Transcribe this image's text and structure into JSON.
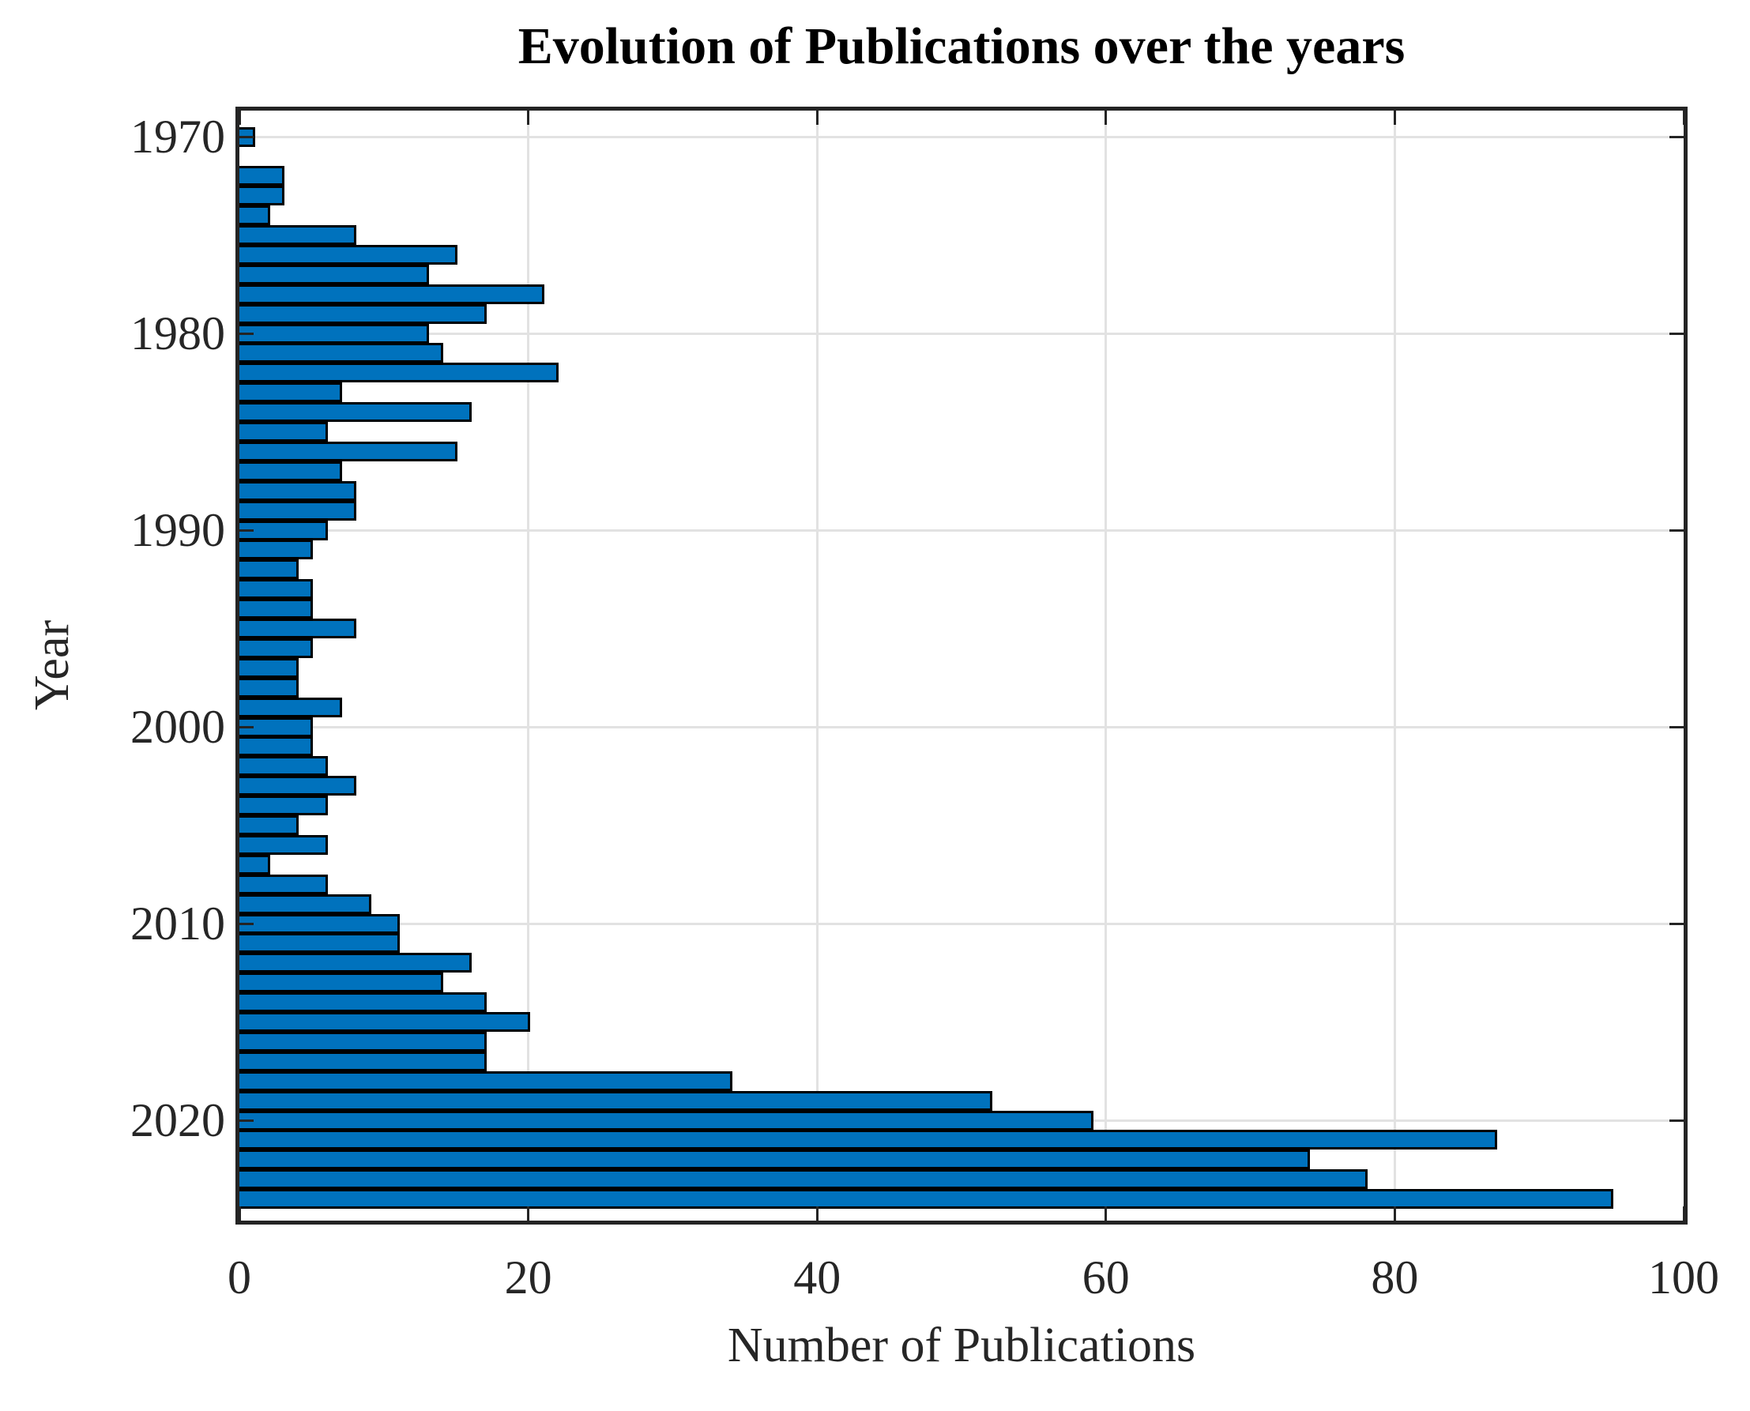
{
  "figure": {
    "background": "#ffffff"
  },
  "chart_data": {
    "type": "bar",
    "orientation": "horizontal",
    "title": "Evolution of Publications over the years",
    "xlabel": "Number of Publications",
    "ylabel": "Year",
    "xlim": [
      0,
      100
    ],
    "xticks": [
      0,
      20,
      40,
      60,
      80,
      100
    ],
    "yticks": [
      1970,
      1980,
      1990,
      2000,
      2010,
      2020
    ],
    "grid": true,
    "legend_position": "none",
    "bar_color": "#0072bd",
    "bar_edge_color": "#000000",
    "grid_color": "#e2e2e2",
    "axis_color": "#242424",
    "tick_label_color": "#262626",
    "years": [
      1970,
      1971,
      1972,
      1973,
      1974,
      1975,
      1976,
      1977,
      1978,
      1979,
      1980,
      1981,
      1982,
      1983,
      1984,
      1985,
      1986,
      1987,
      1988,
      1989,
      1990,
      1991,
      1992,
      1993,
      1994,
      1995,
      1996,
      1997,
      1998,
      1999,
      2000,
      2001,
      2002,
      2003,
      2004,
      2005,
      2006,
      2007,
      2008,
      2009,
      2010,
      2011,
      2012,
      2013,
      2014,
      2015,
      2016,
      2017,
      2018,
      2019,
      2020,
      2021,
      2022,
      2023,
      2024
    ],
    "values": [
      1,
      0,
      3,
      3,
      2,
      8,
      15,
      13,
      21,
      17,
      13,
      14,
      22,
      7,
      16,
      6,
      15,
      7,
      8,
      8,
      6,
      5,
      4,
      5,
      5,
      8,
      5,
      4,
      4,
      7,
      5,
      5,
      6,
      8,
      6,
      4,
      6,
      2,
      6,
      9,
      11,
      11,
      16,
      14,
      17,
      20,
      17,
      17,
      34,
      52,
      59,
      87,
      74,
      78,
      95
    ]
  }
}
